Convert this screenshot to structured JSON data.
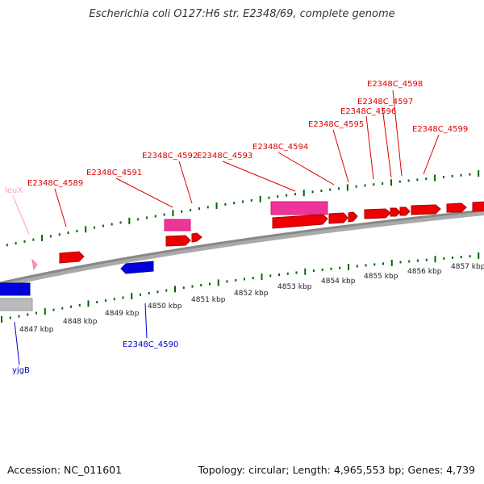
{
  "title": "Escherichia coli O127:H6 str. E2348/69, complete genome",
  "footer": {
    "accession": "Accession: NC_011601",
    "topology": "Topology: circular; Length: 4,965,553 bp; Genes: 4,739"
  },
  "colors": {
    "forward_gene": "#ee0000",
    "forward_rna": "#ee3399",
    "reverse_gene": "#0000dd",
    "reverse_rna": "#ff99cc",
    "pseudo": "#bbbbbb",
    "backbone": "#888888",
    "tick": "#006600"
  },
  "kbp_ticks": [
    "4847 kbp",
    "4848 kbp",
    "4849 kbp",
    "4850 kbp",
    "4851 kbp",
    "4852 kbp",
    "4853 kbp",
    "4854 kbp",
    "4855 kbp",
    "4856 kbp",
    "4857 kbp"
  ],
  "gene_labels": [
    {
      "text": "leuX",
      "color": "#ff99cc"
    },
    {
      "text": "E2348C_4589",
      "color": "#dd0000"
    },
    {
      "text": "E2348C_4591",
      "color": "#dd0000"
    },
    {
      "text": "E2348C_4592",
      "color": "#dd0000"
    },
    {
      "text": "E2348C_4593",
      "color": "#dd0000"
    },
    {
      "text": "E2348C_4594",
      "color": "#dd0000"
    },
    {
      "text": "E2348C_4595",
      "color": "#dd0000"
    },
    {
      "text": "E2348C_4596",
      "color": "#dd0000"
    },
    {
      "text": "E2348C_4597",
      "color": "#dd0000"
    },
    {
      "text": "E2348C_4598",
      "color": "#dd0000"
    },
    {
      "text": "E2348C_4599",
      "color": "#dd0000"
    },
    {
      "text": "E2348C_4590",
      "color": "#0000cc"
    },
    {
      "text": "yjgB",
      "color": "#0000cc"
    }
  ]
}
